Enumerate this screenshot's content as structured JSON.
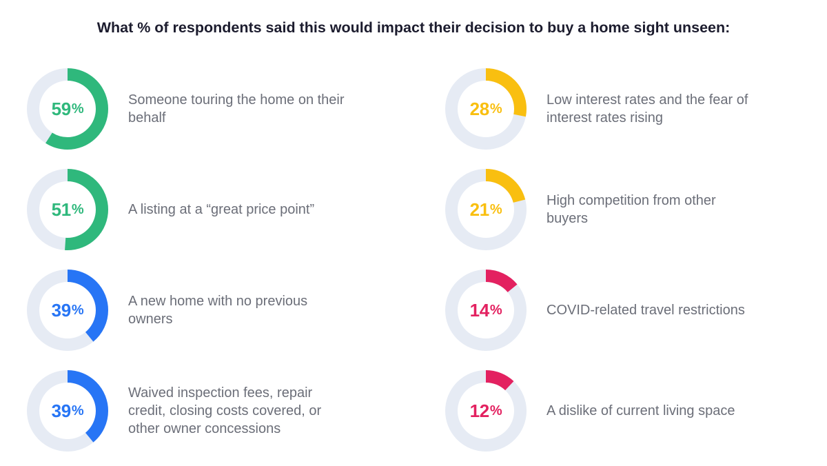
{
  "title": "What % of respondents said this would impact their decision to buy a home sight unseen:",
  "colors": {
    "green": "#2fb87c",
    "yellow": "#f9bf10",
    "blue": "#2775f5",
    "red": "#e32160",
    "track": "#e6ebf4"
  },
  "chart_data": {
    "type": "donut",
    "title": "What % of respondents said this would impact their decision to buy a home sight unseen:",
    "unit": "%",
    "items": [
      {
        "value": 59,
        "label": "Someone touring the home on their behalf",
        "color": "#2fb87c"
      },
      {
        "value": 51,
        "label": "A listing at a “great price point”",
        "color": "#2fb87c"
      },
      {
        "value": 39,
        "label": "A new home with no previous owners",
        "color": "#2775f5"
      },
      {
        "value": 39,
        "label": "Waived inspection fees, repair credit, closing costs covered, or other owner concessions",
        "color": "#2775f5"
      },
      {
        "value": 28,
        "label": "Low interest rates and the fear of interest rates rising",
        "color": "#f9bf10"
      },
      {
        "value": 21,
        "label": "High competition from other buyers",
        "color": "#f9bf10"
      },
      {
        "value": 14,
        "label": "COVID-related travel restrictions",
        "color": "#e32160"
      },
      {
        "value": 12,
        "label": "A dislike of current living space",
        "color": "#e32160"
      }
    ]
  }
}
